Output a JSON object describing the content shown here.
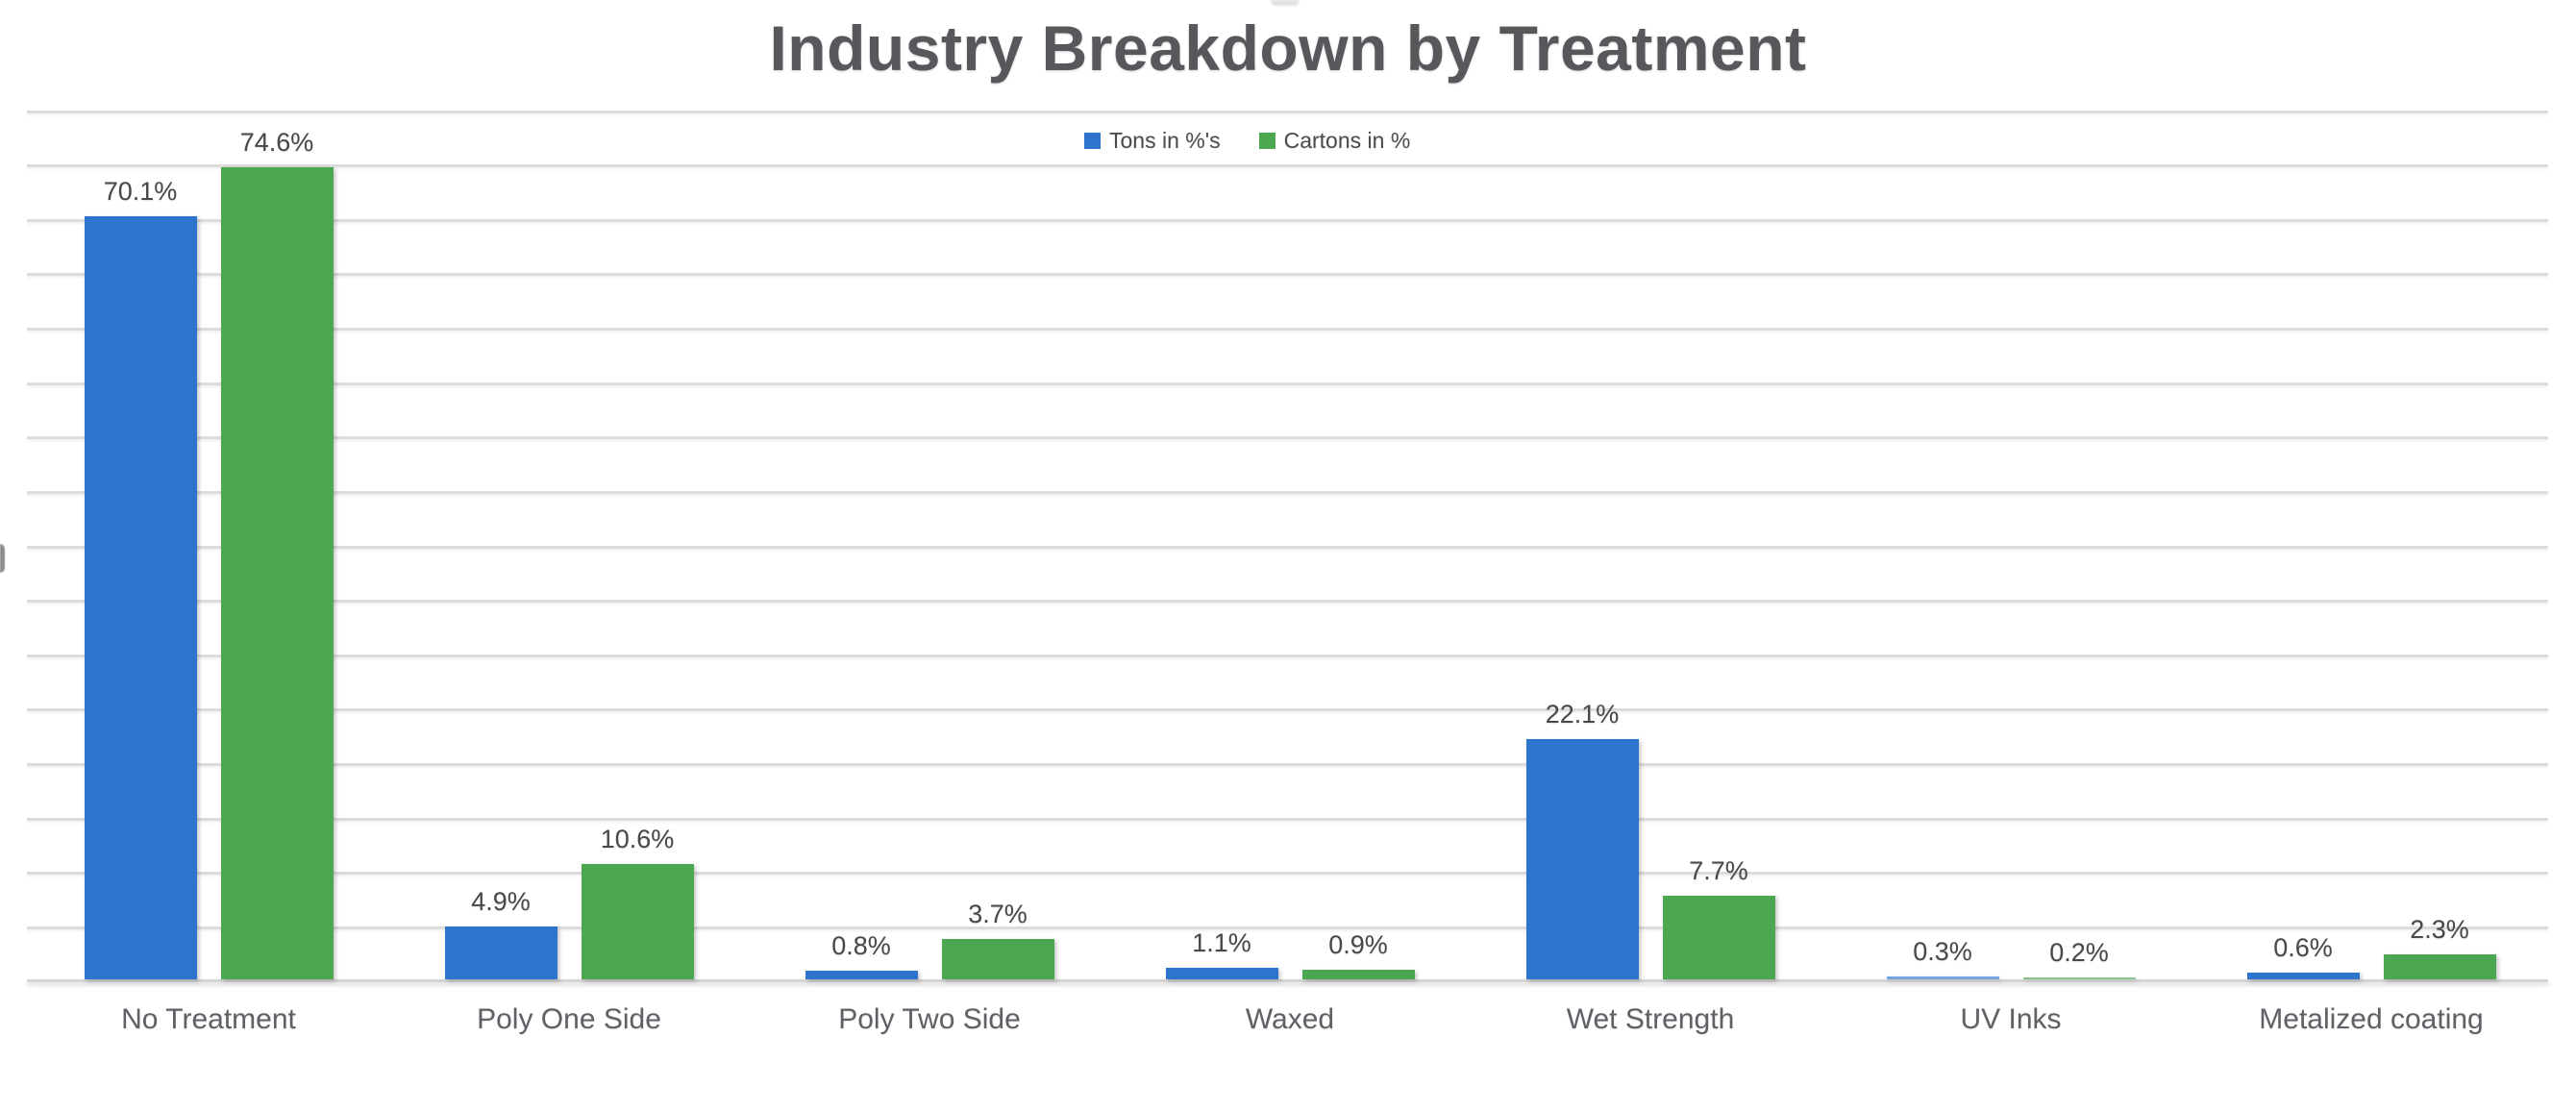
{
  "chart_data": {
    "type": "bar",
    "title": "Industry Breakdown by Treatment",
    "categories": [
      "No Treatment",
      "Poly One Side",
      "Poly Two Side",
      "Waxed",
      "Wet Strength",
      "UV Inks",
      "Metalized coating"
    ],
    "series": [
      {
        "name": "Tons in %'s",
        "color": "#2e74cc",
        "values": [
          70.1,
          4.9,
          0.8,
          1.1,
          22.1,
          0.3,
          0.6
        ]
      },
      {
        "name": "Cartons in %",
        "color": "#4ca850",
        "values": [
          74.6,
          10.6,
          3.7,
          0.9,
          7.7,
          0.2,
          2.3
        ]
      }
    ],
    "value_labels": [
      [
        "70.1%",
        "4.9%",
        "0.8%",
        "1.1%",
        "22.1%",
        "0.3%",
        "0.6%"
      ],
      [
        "74.6%",
        "10.6%",
        "3.7%",
        "0.9%",
        "7.7%",
        "0.2%",
        "2.3%"
      ]
    ],
    "xlabel": "",
    "ylabel": "",
    "ylim": [
      0,
      80
    ],
    "gridline_step": 5,
    "grid": true,
    "legend_position": "top-center"
  },
  "legend": [
    {
      "label": "Tons in %'s",
      "color": "#2e74cc"
    },
    {
      "label": "Cartons in %",
      "color": "#4ca850"
    }
  ],
  "colors": {
    "bar_blue": "#2e74cc",
    "bar_green": "#4ca850",
    "title_text": "#57585b",
    "value_label_text": "#48484a",
    "category_label_text": "#5e6166",
    "gridline": "#dcdcdc",
    "background": "#ffffff"
  }
}
